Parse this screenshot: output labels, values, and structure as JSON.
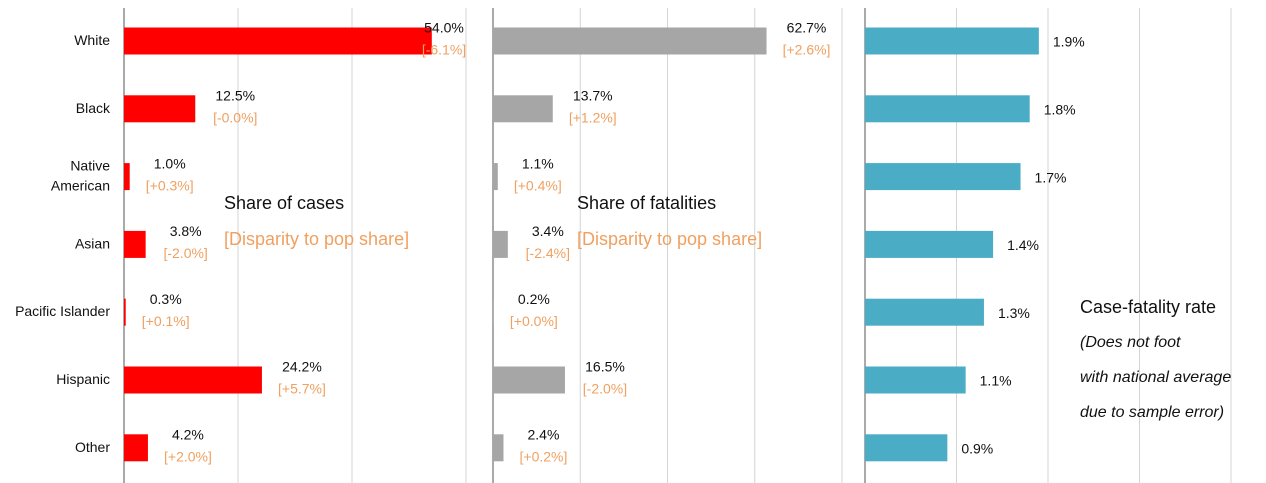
{
  "chart_data": [
    {
      "type": "hbar",
      "color": "#ff0000",
      "categories": [
        "White",
        "Black",
        "Native\nAmerican",
        "Asian",
        "Pacific Islander",
        "Hispanic",
        "Other"
      ],
      "values": [
        54.0,
        12.5,
        1.0,
        3.8,
        0.3,
        24.2,
        4.2
      ],
      "value_labels": [
        "54.0%",
        "12.5%",
        "1.0%",
        "3.8%",
        "0.3%",
        "24.2%",
        "4.2%"
      ],
      "disparity_labels": [
        "[-6.1%]",
        "[-0.0%]",
        "[+0.3%]",
        "[-2.0%]",
        "[+0.1%]",
        "[+5.7%]",
        "[+2.0%]"
      ],
      "xlim": [
        0,
        60
      ],
      "xticks": [
        0,
        20,
        40,
        60
      ],
      "grid": true,
      "annotations": [
        "Share of cases",
        "[Disparity to pop share]"
      ]
    },
    {
      "type": "hbar",
      "color": "#a6a6a6",
      "values": [
        62.7,
        13.7,
        1.1,
        3.4,
        0.2,
        16.5,
        2.4
      ],
      "value_labels": [
        "62.7%",
        "13.7%",
        "1.1%",
        "3.4%",
        "0.2%",
        "16.5%",
        "2.4%"
      ],
      "disparity_labels": [
        "[+2.6%]",
        "[+1.2%]",
        "[+0.4%]",
        "[-2.4%]",
        "[+0.0%]",
        "[-2.0%]",
        "[+0.2%]"
      ],
      "xlim": [
        0,
        80
      ],
      "xticks": [
        0,
        20,
        40,
        60,
        80
      ],
      "grid": true,
      "annotations": [
        "Share of fatalities",
        "[Disparity to pop share]"
      ]
    },
    {
      "type": "hbar",
      "color": "#4bacc6",
      "values": [
        1.9,
        1.8,
        1.7,
        1.4,
        1.3,
        1.1,
        0.9
      ],
      "value_labels": [
        "1.9%",
        "1.8%",
        "1.7%",
        "1.4%",
        "1.3%",
        "1.1%",
        "0.9%"
      ],
      "xlim": [
        0,
        4
      ],
      "xticks": [
        0,
        1,
        2,
        3,
        4
      ],
      "grid": true,
      "annotations": [
        "Case-fatality rate",
        "(Does not foot",
        "with national average",
        "due to sample error)"
      ]
    }
  ]
}
